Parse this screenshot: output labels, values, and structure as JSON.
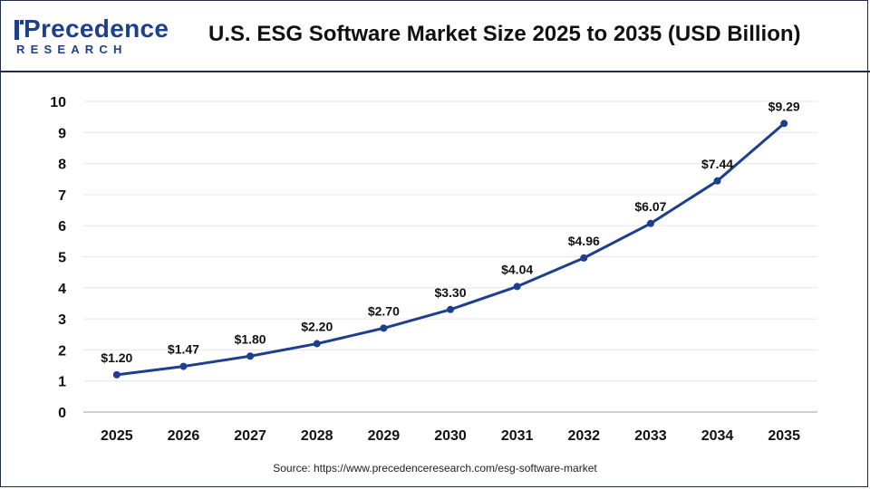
{
  "header": {
    "logo_text": "Precedence",
    "logo_subtext": "RESEARCH",
    "title": "U.S. ESG Software Market Size 2025 to 2035 (USD Billion)"
  },
  "source": "Source: https://www.precedenceresearch.com/esg-software-market",
  "colors": {
    "line": "#1e3f8f",
    "brand": "#1e3f8a",
    "grid": "#e6e6e6"
  },
  "chart_data": {
    "type": "line",
    "categories": [
      "2025",
      "2026",
      "2027",
      "2028",
      "2029",
      "2030",
      "2031",
      "2032",
      "2033",
      "2034",
      "2035"
    ],
    "values": [
      1.2,
      1.47,
      1.8,
      2.2,
      2.7,
      3.3,
      4.04,
      4.96,
      6.07,
      7.44,
      9.29
    ],
    "data_labels": [
      "$1.20",
      "$1.47",
      "$1.80",
      "$2.20",
      "$2.70",
      "$3.30",
      "$4.04",
      "$4.96",
      "$6.07",
      "$7.44",
      "$9.29"
    ],
    "yticks": [
      "0",
      "1",
      "2",
      "3",
      "4",
      "5",
      "6",
      "7",
      "8",
      "9",
      "10"
    ],
    "ylim": [
      0,
      10
    ],
    "grid": true,
    "legend": "none"
  }
}
